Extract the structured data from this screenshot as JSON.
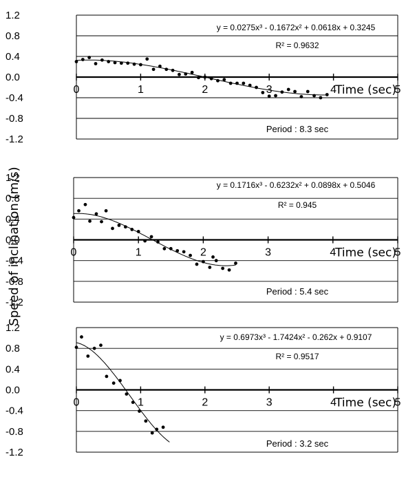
{
  "figure": {
    "ylabel": "Speed of inclination (m/s)"
  },
  "chart_data": [
    {
      "type": "scatter",
      "xlabel": "Time (sec)",
      "ylabel": "Speed of inclination (m/s)",
      "xlim": [
        0,
        5
      ],
      "ylim": [
        -1.2,
        1.2
      ],
      "x_ticks": [
        "0",
        "1",
        "2",
        "3",
        "4",
        "5"
      ],
      "y_ticks": [
        "1.2",
        "0.8",
        "0.4",
        "0.0",
        "-0.4",
        "-0.8",
        "-1.2"
      ],
      "trendline": {
        "equation": "y = 0.0275x³ - 0.1672x² + 0.0618x + 0.3245",
        "coefficients": [
          0.0275,
          -0.1672,
          0.0618,
          0.3245
        ],
        "x_range": [
          0,
          3.9
        ],
        "r2": "R² = 0.9632"
      },
      "period": "Period : 8.3 sec",
      "points": [
        [
          0.0,
          0.3
        ],
        [
          0.1,
          0.34
        ],
        [
          0.2,
          0.38
        ],
        [
          0.3,
          0.26
        ],
        [
          0.4,
          0.33
        ],
        [
          0.5,
          0.3
        ],
        [
          0.6,
          0.28
        ],
        [
          0.7,
          0.27
        ],
        [
          0.8,
          0.27
        ],
        [
          0.9,
          0.25
        ],
        [
          1.0,
          0.24
        ],
        [
          1.1,
          0.35
        ],
        [
          1.2,
          0.15
        ],
        [
          1.3,
          0.21
        ],
        [
          1.4,
          0.15
        ],
        [
          1.5,
          0.13
        ],
        [
          1.6,
          0.05
        ],
        [
          1.7,
          0.06
        ],
        [
          1.8,
          0.09
        ],
        [
          1.9,
          -0.01
        ],
        [
          2.0,
          0.0
        ],
        [
          2.1,
          -0.03
        ],
        [
          2.2,
          -0.07
        ],
        [
          2.3,
          -0.05
        ],
        [
          2.4,
          -0.12
        ],
        [
          2.5,
          -0.12
        ],
        [
          2.6,
          -0.12
        ],
        [
          2.7,
          -0.16
        ],
        [
          2.8,
          -0.2
        ],
        [
          2.9,
          -0.3
        ],
        [
          3.0,
          -0.37
        ],
        [
          3.1,
          -0.36
        ],
        [
          3.2,
          -0.29
        ],
        [
          3.3,
          -0.24
        ],
        [
          3.4,
          -0.28
        ],
        [
          3.5,
          -0.38
        ],
        [
          3.6,
          -0.28
        ],
        [
          3.7,
          -0.36
        ],
        [
          3.8,
          -0.4
        ],
        [
          3.9,
          -0.34
        ]
      ]
    },
    {
      "type": "scatter",
      "xlabel": "Time (sec)",
      "ylabel": "Speed of inclination (m/s)",
      "xlim": [
        0,
        5
      ],
      "ylim": [
        -1.2,
        1.2
      ],
      "x_ticks": [
        "0",
        "1",
        "2",
        "3",
        "4",
        "5"
      ],
      "y_ticks": [
        "1.2",
        "0.8",
        "0.4",
        "0.0",
        "-0.4",
        "-0.8",
        "-1.2"
      ],
      "trendline": {
        "equation": "y = 0.1716x³ - 0.6232x² + 0.0898x + 0.5046",
        "coefficients": [
          0.1716,
          -0.6232,
          0.0898,
          0.5046
        ],
        "x_range": [
          0,
          2.5
        ],
        "r2": "R² = 0.945"
      },
      "period": "Period : 5.4 sec",
      "points": [
        [
          0.0,
          0.43
        ],
        [
          0.08,
          0.56
        ],
        [
          0.18,
          0.68
        ],
        [
          0.25,
          0.36
        ],
        [
          0.35,
          0.5
        ],
        [
          0.43,
          0.35
        ],
        [
          0.5,
          0.56
        ],
        [
          0.6,
          0.22
        ],
        [
          0.7,
          0.28
        ],
        [
          0.8,
          0.25
        ],
        [
          0.9,
          0.2
        ],
        [
          1.0,
          0.16
        ],
        [
          1.1,
          -0.02
        ],
        [
          1.2,
          0.06
        ],
        [
          1.3,
          -0.04
        ],
        [
          1.4,
          -0.17
        ],
        [
          1.5,
          -0.17
        ],
        [
          1.6,
          -0.21
        ],
        [
          1.7,
          -0.23
        ],
        [
          1.8,
          -0.3
        ],
        [
          1.9,
          -0.47
        ],
        [
          2.0,
          -0.42
        ],
        [
          2.1,
          -0.53
        ],
        [
          2.15,
          -0.33
        ],
        [
          2.2,
          -0.4
        ],
        [
          2.3,
          -0.55
        ],
        [
          2.4,
          -0.58
        ],
        [
          2.5,
          -0.45
        ]
      ]
    },
    {
      "type": "scatter",
      "xlabel": "Time (sec)",
      "ylabel": "Speed of inclination (m/s)",
      "xlim": [
        0,
        5
      ],
      "ylim": [
        -1.2,
        1.2
      ],
      "x_ticks": [
        "0",
        "1",
        "2",
        "3",
        "4",
        "5"
      ],
      "y_ticks": [
        "1.2",
        "0.8",
        "0.4",
        "0.0",
        "-0.4",
        "-0.8",
        "-1.2"
      ],
      "trendline": {
        "equation": "y = 0.6973x³ - 1.7424x² - 0.262x + 0.9107",
        "coefficients": [
          0.6973,
          -1.7424,
          -0.262,
          0.9107
        ],
        "x_range": [
          0,
          1.45
        ],
        "r2": "R² = 0.9517"
      },
      "period": "Period : 3.2 sec",
      "points": [
        [
          0.0,
          0.82
        ],
        [
          0.08,
          1.02
        ],
        [
          0.18,
          0.65
        ],
        [
          0.28,
          0.8
        ],
        [
          0.38,
          0.86
        ],
        [
          0.47,
          0.26
        ],
        [
          0.58,
          0.13
        ],
        [
          0.68,
          0.18
        ],
        [
          0.78,
          -0.08
        ],
        [
          0.88,
          -0.24
        ],
        [
          0.98,
          -0.41
        ],
        [
          1.08,
          -0.6
        ],
        [
          1.18,
          -0.83
        ],
        [
          1.25,
          -0.76
        ],
        [
          1.35,
          -0.72
        ]
      ]
    }
  ]
}
